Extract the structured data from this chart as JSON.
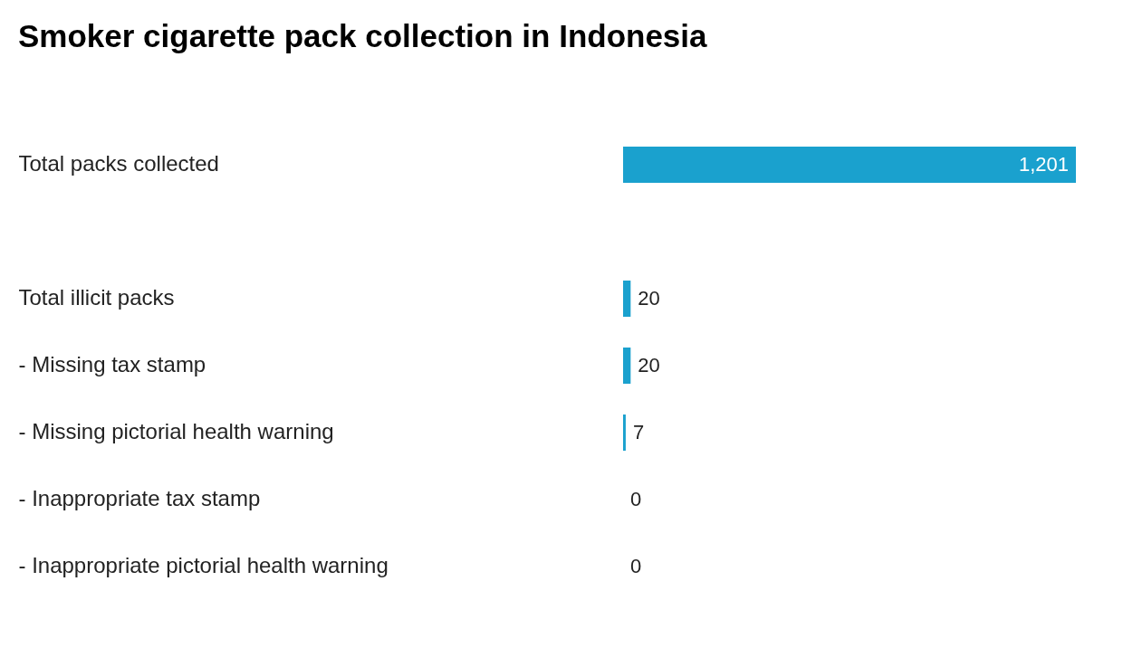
{
  "chart_data": {
    "type": "bar",
    "orientation": "horizontal",
    "title": "Smoker cigarette pack collection in Indonesia",
    "categories": [
      "Total packs collected",
      null,
      "Total illicit packs",
      "- Missing tax stamp",
      "- Missing pictorial health warning",
      "- Inappropriate tax stamp",
      "- Inappropriate pictorial health warning"
    ],
    "values": [
      1201,
      null,
      20,
      20,
      7,
      0,
      0
    ],
    "value_labels": [
      "1,201",
      null,
      "20",
      "20",
      "7",
      "0",
      "0"
    ],
    "color": "#1aa1ce",
    "xlim": [
      0,
      1201
    ],
    "tick_labels": "y",
    "grid": false
  }
}
